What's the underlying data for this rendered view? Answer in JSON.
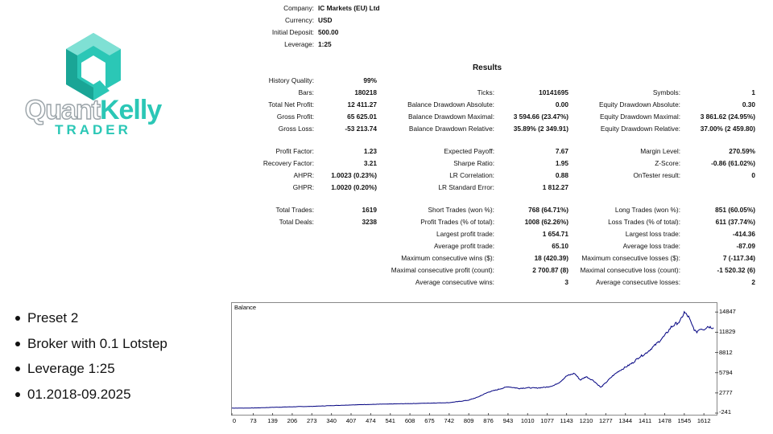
{
  "logo": {
    "word1": "Quant",
    "word2": "Kelly",
    "sub": "TRADER",
    "colors": {
      "teal": "#2bc7b6",
      "grey": "#9aa3a8"
    }
  },
  "header": {
    "company_label": "Company:",
    "company": "IC Markets (EU) Ltd",
    "currency_label": "Currency:",
    "currency": "USD",
    "deposit_label": "Initial Deposit:",
    "deposit": "500.00",
    "leverage_label": "Leverage:",
    "leverage": "1:25"
  },
  "results": {
    "title": "Results",
    "col1": {
      "history_quality": {
        "label": "History Quality:",
        "value": "99%"
      },
      "bars": {
        "label": "Bars:",
        "value": "180218"
      },
      "total_net_profit": {
        "label": "Total Net Profit:",
        "value": "12 411.27"
      },
      "gross_profit": {
        "label": "Gross Profit:",
        "value": "65 625.01"
      },
      "gross_loss": {
        "label": "Gross Loss:",
        "value": "-53 213.74"
      },
      "profit_factor": {
        "label": "Profit Factor:",
        "value": "1.23"
      },
      "recovery_factor": {
        "label": "Recovery Factor:",
        "value": "3.21"
      },
      "ahpr": {
        "label": "AHPR:",
        "value": "1.0023 (0.23%)"
      },
      "ghpr": {
        "label": "GHPR:",
        "value": "1.0020 (0.20%)"
      },
      "total_trades": {
        "label": "Total Trades:",
        "value": "1619"
      },
      "total_deals": {
        "label": "Total Deals:",
        "value": "3238"
      }
    },
    "col2": {
      "ticks": {
        "label": "Ticks:",
        "value": "10141695"
      },
      "bal_dd_abs": {
        "label": "Balance Drawdown Absolute:",
        "value": "0.00"
      },
      "bal_dd_max": {
        "label": "Balance Drawdown Maximal:",
        "value": "3 594.66 (23.47%)"
      },
      "bal_dd_rel": {
        "label": "Balance Drawdown Relative:",
        "value": "35.89% (2 349.91)"
      },
      "expected_payoff": {
        "label": "Expected Payoff:",
        "value": "7.67"
      },
      "sharpe": {
        "label": "Sharpe Ratio:",
        "value": "1.95"
      },
      "lr_corr": {
        "label": "LR Correlation:",
        "value": "0.88"
      },
      "lr_std": {
        "label": "LR Standard Error:",
        "value": "1 812.27"
      },
      "short_trades": {
        "label": "Short Trades (won %):",
        "value": "768 (64.71%)"
      },
      "profit_trades": {
        "label": "Profit Trades (% of total):",
        "value": "1008 (62.26%)"
      },
      "largest_profit": {
        "label": "Largest profit trade:",
        "value": "1 654.71"
      },
      "avg_profit": {
        "label": "Average profit trade:",
        "value": "65.10"
      },
      "max_consec_wins": {
        "label": "Maximum consecutive wins ($):",
        "value": "18 (420.39)"
      },
      "maximal_consec_profit": {
        "label": "Maximal consecutive profit (count):",
        "value": "2 700.87 (8)"
      },
      "avg_consec_wins": {
        "label": "Average consecutive wins:",
        "value": "3"
      }
    },
    "col3": {
      "symbols": {
        "label": "Symbols:",
        "value": "1"
      },
      "eq_dd_abs": {
        "label": "Equity Drawdown Absolute:",
        "value": "0.30"
      },
      "eq_dd_max": {
        "label": "Equity Drawdown Maximal:",
        "value": "3 861.62 (24.95%)"
      },
      "eq_dd_rel": {
        "label": "Equity Drawdown Relative:",
        "value": "37.00% (2 459.80)"
      },
      "margin_level": {
        "label": "Margin Level:",
        "value": "270.59%"
      },
      "z_score": {
        "label": "Z-Score:",
        "value": "-0.86 (61.02%)"
      },
      "ontester": {
        "label": "OnTester result:",
        "value": "0"
      },
      "long_trades": {
        "label": "Long Trades (won %):",
        "value": "851 (60.05%)"
      },
      "loss_trades": {
        "label": "Loss Trades (% of total):",
        "value": "611 (37.74%)"
      },
      "largest_loss": {
        "label": "Largest loss trade:",
        "value": "-414.36"
      },
      "avg_loss": {
        "label": "Average loss trade:",
        "value": "-87.09"
      },
      "max_consec_losses": {
        "label": "Maximum consecutive losses ($):",
        "value": "7 (-117.34)"
      },
      "maximal_consec_loss": {
        "label": "Maximal consecutive loss (count):",
        "value": "-1 520.32 (6)"
      },
      "avg_consec_losses": {
        "label": "Average consecutive losses:",
        "value": "2"
      }
    }
  },
  "bullets": [
    "Preset 2",
    "Broker with 0.1 Lotstep",
    "Leverage 1:25",
    "01.2018-09.2025"
  ],
  "chart_data": {
    "type": "line",
    "title": "Balance",
    "color": "#000080",
    "xlim": [
      0,
      1650
    ],
    "ylim": [
      -241,
      16200
    ],
    "x_ticks": [
      "0",
      "73",
      "139",
      "206",
      "273",
      "340",
      "407",
      "474",
      "541",
      "608",
      "675",
      "742",
      "809",
      "876",
      "943",
      "1010",
      "1077",
      "1143",
      "1210",
      "1277",
      "1344",
      "1411",
      "1478",
      "1545",
      "1612"
    ],
    "y_ticks": [
      "14847",
      "11829",
      "8812",
      "5794",
      "2777",
      "-241"
    ],
    "series": [
      {
        "x": [
          0,
          73,
          139,
          206,
          273,
          340,
          407,
          474,
          541,
          608,
          675,
          742,
          780,
          809,
          840,
          876,
          910,
          943,
          980,
          1010,
          1040,
          1077,
          1100,
          1120,
          1143,
          1170,
          1190,
          1210,
          1235,
          1260,
          1277,
          1300,
          1320,
          1344,
          1370,
          1390,
          1411,
          1430,
          1450,
          1478,
          1500,
          1520,
          1530,
          1545,
          1560,
          1570,
          1585,
          1600,
          1612,
          1625,
          1645
        ],
        "y": [
          500,
          520,
          620,
          700,
          760,
          880,
          980,
          1060,
          1120,
          1180,
          1250,
          1320,
          1520,
          1700,
          2150,
          2900,
          3300,
          3700,
          3450,
          3550,
          3500,
          3650,
          3900,
          4400,
          5300,
          5700,
          4700,
          5200,
          4600,
          3600,
          4300,
          5300,
          6000,
          6600,
          7300,
          8100,
          8600,
          9300,
          10100,
          11300,
          12600,
          13200,
          13400,
          14800,
          14100,
          13000,
          11800,
          12400,
          12300,
          12700,
          12500
        ]
      }
    ]
  }
}
